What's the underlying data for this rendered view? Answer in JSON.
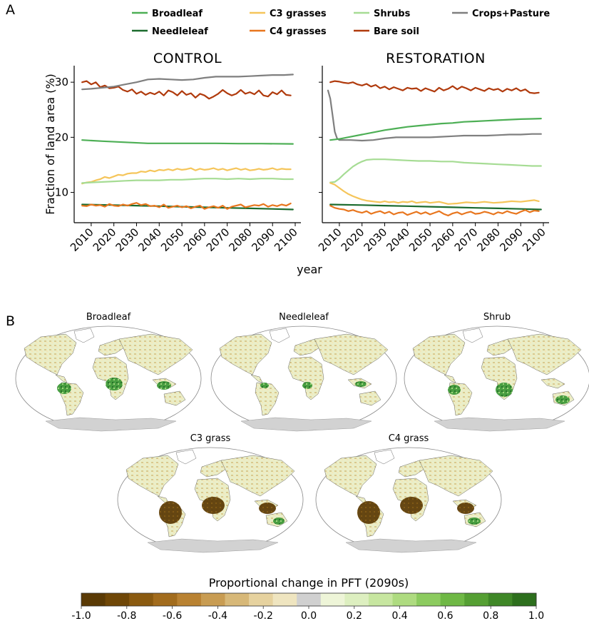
{
  "panel_a_letter": "A",
  "panel_b_letter": "B",
  "colors": {
    "Broadleaf": "#4daf55",
    "Needleleaf": "#1b6b2e",
    "C3 grasses": "#f5c55a",
    "C4 grasses": "#e8761e",
    "Shrubs": "#a6dc94",
    "Bare soil": "#b03a0c",
    "Crops+Pasture": "#7f7f7f"
  },
  "legend": [
    "Broadleaf",
    "Needleleaf",
    "C3 grasses",
    "C4 grasses",
    "Shrubs",
    "Bare soil",
    "Crops+Pasture"
  ],
  "chart_data": [
    {
      "type": "line",
      "title": "CONTROL",
      "xlabel": "year",
      "ylabel": "Fraction of land area (%)",
      "xlim": [
        2005,
        2100
      ],
      "ylim": [
        4.5,
        33
      ],
      "xticks": [
        2010,
        2020,
        2030,
        2040,
        2050,
        2060,
        2070,
        2080,
        2090,
        2100
      ],
      "yticks": [
        10,
        20,
        30
      ],
      "series": [
        {
          "name": "Bare soil",
          "x": [
            2006,
            2008,
            2010,
            2012,
            2014,
            2016,
            2018,
            2020,
            2022,
            2024,
            2026,
            2028,
            2030,
            2032,
            2034,
            2036,
            2038,
            2040,
            2042,
            2044,
            2046,
            2048,
            2050,
            2052,
            2054,
            2056,
            2058,
            2060,
            2062,
            2064,
            2066,
            2068,
            2070,
            2072,
            2074,
            2076,
            2078,
            2080,
            2082,
            2084,
            2086,
            2088,
            2090,
            2092,
            2094,
            2096,
            2098
          ],
          "y": [
            30.0,
            30.2,
            29.6,
            30.0,
            29.1,
            29.4,
            28.9,
            29.0,
            29.2,
            28.6,
            28.3,
            28.7,
            27.9,
            28.3,
            27.7,
            28.1,
            27.8,
            28.3,
            27.6,
            28.5,
            28.2,
            27.6,
            28.4,
            27.7,
            28.0,
            27.2,
            27.9,
            27.6,
            27.0,
            27.4,
            27.9,
            28.6,
            28.0,
            27.6,
            27.9,
            28.6,
            27.9,
            28.2,
            27.8,
            28.5,
            27.6,
            27.4,
            28.2,
            27.8,
            28.5,
            27.7,
            27.6
          ]
        },
        {
          "name": "Crops+Pasture",
          "x": [
            2006,
            2010,
            2015,
            2020,
            2025,
            2030,
            2035,
            2040,
            2045,
            2050,
            2055,
            2060,
            2065,
            2070,
            2075,
            2080,
            2085,
            2090,
            2095,
            2099
          ],
          "y": [
            28.7,
            28.8,
            29.0,
            29.2,
            29.6,
            30.0,
            30.5,
            30.6,
            30.5,
            30.4,
            30.5,
            30.8,
            31.0,
            31.0,
            31.0,
            31.1,
            31.2,
            31.3,
            31.3,
            31.4
          ]
        },
        {
          "name": "Broadleaf",
          "x": [
            2006,
            2015,
            2025,
            2035,
            2045,
            2055,
            2065,
            2075,
            2085,
            2099
          ],
          "y": [
            19.5,
            19.3,
            19.1,
            18.9,
            18.9,
            18.9,
            18.9,
            18.85,
            18.85,
            18.8
          ]
        },
        {
          "name": "C3 grasses",
          "x": [
            2006,
            2008,
            2010,
            2012,
            2014,
            2016,
            2018,
            2020,
            2022,
            2024,
            2026,
            2028,
            2030,
            2032,
            2034,
            2036,
            2038,
            2040,
            2042,
            2044,
            2046,
            2048,
            2050,
            2052,
            2054,
            2056,
            2058,
            2060,
            2062,
            2064,
            2066,
            2068,
            2070,
            2072,
            2074,
            2076,
            2078,
            2080,
            2082,
            2084,
            2086,
            2088,
            2090,
            2092,
            2094,
            2096,
            2098
          ],
          "y": [
            11.6,
            11.8,
            11.9,
            12.2,
            12.4,
            12.8,
            12.6,
            12.9,
            13.2,
            13.1,
            13.4,
            13.5,
            13.5,
            13.8,
            13.7,
            14.0,
            13.8,
            14.1,
            14.0,
            14.2,
            14.0,
            14.3,
            14.1,
            14.2,
            14.4,
            14.0,
            14.3,
            14.1,
            14.2,
            14.4,
            14.1,
            14.3,
            14.0,
            14.2,
            14.4,
            14.1,
            14.3,
            14.0,
            14.1,
            14.3,
            14.1,
            14.2,
            14.4,
            14.1,
            14.3,
            14.2,
            14.2
          ]
        },
        {
          "name": "Shrubs",
          "x": [
            2006,
            2010,
            2015,
            2020,
            2025,
            2030,
            2035,
            2040,
            2045,
            2050,
            2055,
            2060,
            2065,
            2070,
            2075,
            2080,
            2085,
            2090,
            2095,
            2099
          ],
          "y": [
            11.7,
            11.8,
            11.9,
            12.0,
            12.1,
            12.2,
            12.2,
            12.2,
            12.3,
            12.3,
            12.4,
            12.5,
            12.5,
            12.4,
            12.5,
            12.4,
            12.5,
            12.5,
            12.4,
            12.4
          ]
        },
        {
          "name": "Needleleaf",
          "x": [
            2006,
            2020,
            2030,
            2040,
            2050,
            2060,
            2070,
            2080,
            2090,
            2099
          ],
          "y": [
            7.8,
            7.7,
            7.6,
            7.5,
            7.4,
            7.3,
            7.2,
            7.1,
            7.0,
            6.9
          ]
        },
        {
          "name": "C4 grasses",
          "x": [
            2006,
            2008,
            2010,
            2012,
            2014,
            2016,
            2018,
            2020,
            2022,
            2024,
            2026,
            2028,
            2030,
            2032,
            2034,
            2036,
            2038,
            2040,
            2042,
            2044,
            2046,
            2048,
            2050,
            2052,
            2054,
            2056,
            2058,
            2060,
            2062,
            2064,
            2066,
            2068,
            2070,
            2072,
            2074,
            2076,
            2078,
            2080,
            2082,
            2084,
            2086,
            2088,
            2090,
            2092,
            2094,
            2096,
            2098
          ],
          "y": [
            7.6,
            7.5,
            7.8,
            7.6,
            7.7,
            7.4,
            7.9,
            7.6,
            7.5,
            7.8,
            7.6,
            7.9,
            8.1,
            7.7,
            7.9,
            7.5,
            7.6,
            7.3,
            7.8,
            7.2,
            7.4,
            7.6,
            7.3,
            7.5,
            7.1,
            7.4,
            7.6,
            7.0,
            7.3,
            7.5,
            7.2,
            7.6,
            7.0,
            7.4,
            7.6,
            7.8,
            7.3,
            7.5,
            7.7,
            7.6,
            7.9,
            7.4,
            7.7,
            7.5,
            7.8,
            7.6,
            8.0
          ]
        }
      ]
    },
    {
      "type": "line",
      "title": "RESTORATION",
      "xlabel": "year",
      "ylabel": "",
      "xlim": [
        2005,
        2100
      ],
      "ylim": [
        4.5,
        33
      ],
      "xticks": [
        2010,
        2020,
        2030,
        2040,
        2050,
        2060,
        2070,
        2080,
        2090,
        2100
      ],
      "yticks": [
        10,
        20,
        30
      ],
      "series": [
        {
          "name": "Bare soil",
          "x": [
            2006,
            2008,
            2010,
            2012,
            2014,
            2016,
            2018,
            2020,
            2022,
            2024,
            2026,
            2028,
            2030,
            2032,
            2034,
            2036,
            2038,
            2040,
            2042,
            2044,
            2046,
            2048,
            2050,
            2052,
            2054,
            2056,
            2058,
            2060,
            2062,
            2064,
            2066,
            2068,
            2070,
            2072,
            2074,
            2076,
            2078,
            2080,
            2082,
            2084,
            2086,
            2088,
            2090,
            2092,
            2094,
            2096,
            2098
          ],
          "y": [
            30.0,
            30.2,
            30.1,
            29.9,
            29.8,
            30.0,
            29.6,
            29.4,
            29.7,
            29.2,
            29.5,
            28.9,
            29.2,
            28.7,
            29.1,
            28.8,
            28.5,
            29.0,
            28.8,
            28.9,
            28.4,
            28.9,
            28.6,
            28.3,
            29.0,
            28.5,
            28.8,
            29.3,
            28.7,
            29.2,
            28.9,
            28.5,
            29.0,
            28.7,
            28.4,
            28.9,
            28.6,
            28.8,
            28.3,
            28.8,
            28.5,
            28.9,
            28.4,
            28.7,
            28.1,
            28.0,
            28.1
          ]
        },
        {
          "name": "Crops+Pasture",
          "x": [
            2005,
            2006,
            2007,
            2008,
            2009,
            2010,
            2012,
            2015,
            2020,
            2025,
            2030,
            2035,
            2040,
            2045,
            2050,
            2055,
            2060,
            2065,
            2070,
            2075,
            2080,
            2085,
            2090,
            2095,
            2099
          ],
          "y": [
            28.5,
            27.0,
            24.0,
            21.0,
            19.8,
            19.5,
            19.5,
            19.5,
            19.4,
            19.5,
            19.8,
            20.0,
            20.0,
            20.0,
            20.0,
            20.1,
            20.2,
            20.3,
            20.3,
            20.3,
            20.4,
            20.5,
            20.5,
            20.6,
            20.6
          ]
        },
        {
          "name": "Broadleaf",
          "x": [
            2006,
            2010,
            2015,
            2020,
            2025,
            2030,
            2035,
            2040,
            2045,
            2050,
            2055,
            2060,
            2065,
            2070,
            2075,
            2080,
            2085,
            2090,
            2095,
            2099
          ],
          "y": [
            19.5,
            19.7,
            20.1,
            20.5,
            20.9,
            21.3,
            21.6,
            21.9,
            22.1,
            22.3,
            22.5,
            22.6,
            22.8,
            22.9,
            23.0,
            23.1,
            23.2,
            23.3,
            23.35,
            23.4
          ]
        },
        {
          "name": "Shrubs",
          "x": [
            2006,
            2008,
            2010,
            2012,
            2014,
            2016,
            2018,
            2020,
            2022,
            2025,
            2030,
            2035,
            2040,
            2045,
            2050,
            2055,
            2060,
            2065,
            2070,
            2075,
            2080,
            2085,
            2090,
            2095,
            2099
          ],
          "y": [
            11.8,
            11.9,
            12.5,
            13.3,
            14.0,
            14.7,
            15.2,
            15.6,
            15.9,
            16.0,
            16.0,
            15.9,
            15.8,
            15.7,
            15.7,
            15.6,
            15.6,
            15.4,
            15.3,
            15.2,
            15.1,
            15.0,
            14.9,
            14.8,
            14.8
          ]
        },
        {
          "name": "C3 grasses",
          "x": [
            2006,
            2008,
            2010,
            2012,
            2014,
            2016,
            2018,
            2020,
            2022,
            2024,
            2026,
            2028,
            2030,
            2032,
            2034,
            2036,
            2038,
            2040,
            2042,
            2044,
            2046,
            2048,
            2050,
            2054,
            2058,
            2062,
            2066,
            2070,
            2074,
            2078,
            2082,
            2086,
            2090,
            2094,
            2096,
            2098
          ],
          "y": [
            11.7,
            11.4,
            10.8,
            10.2,
            9.7,
            9.3,
            9.0,
            8.7,
            8.5,
            8.4,
            8.3,
            8.2,
            8.4,
            8.2,
            8.3,
            8.1,
            8.3,
            8.2,
            8.4,
            8.1,
            8.2,
            8.3,
            8.1,
            8.3,
            7.9,
            8.0,
            8.2,
            8.1,
            8.3,
            8.1,
            8.2,
            8.4,
            8.3,
            8.5,
            8.6,
            8.4
          ]
        },
        {
          "name": "Needleleaf",
          "x": [
            2006,
            2020,
            2030,
            2040,
            2050,
            2060,
            2070,
            2080,
            2090,
            2099
          ],
          "y": [
            7.8,
            7.7,
            7.6,
            7.5,
            7.4,
            7.3,
            7.2,
            7.1,
            7.0,
            6.9
          ]
        },
        {
          "name": "C4 grasses",
          "x": [
            2006,
            2008,
            2010,
            2012,
            2014,
            2016,
            2018,
            2020,
            2022,
            2024,
            2026,
            2028,
            2030,
            2032,
            2034,
            2036,
            2038,
            2040,
            2042,
            2044,
            2046,
            2048,
            2050,
            2052,
            2054,
            2056,
            2058,
            2060,
            2062,
            2064,
            2066,
            2068,
            2070,
            2072,
            2074,
            2076,
            2078,
            2080,
            2082,
            2084,
            2086,
            2088,
            2090,
            2092,
            2094,
            2096,
            2098
          ],
          "y": [
            7.6,
            7.2,
            7.0,
            6.9,
            6.6,
            6.8,
            6.5,
            6.3,
            6.6,
            6.1,
            6.4,
            6.6,
            6.2,
            6.5,
            6.0,
            6.3,
            6.4,
            5.9,
            6.2,
            6.5,
            6.1,
            6.4,
            6.0,
            6.3,
            6.6,
            6.1,
            5.8,
            6.2,
            6.4,
            6.0,
            6.3,
            6.5,
            6.1,
            6.2,
            6.5,
            6.3,
            6.0,
            6.4,
            6.2,
            6.6,
            6.3,
            6.1,
            6.5,
            6.8,
            6.4,
            6.7,
            6.6
          ]
        }
      ]
    }
  ],
  "maps": [
    {
      "title": "Broadleaf"
    },
    {
      "title": "Needleleaf"
    },
    {
      "title": "Shrub"
    },
    {
      "title": "C3 grass"
    },
    {
      "title": "C4 grass"
    }
  ],
  "colorbar": {
    "title": "Proportional change in PFT (2090s)",
    "ticks": [
      "-1.0",
      "-0.8",
      "-0.6",
      "-0.4",
      "-0.2",
      "0.0",
      "0.2",
      "0.4",
      "0.6",
      "0.8",
      "1.0"
    ],
    "colors": [
      "#5a3a05",
      "#6f4707",
      "#8a5a10",
      "#a26c1d",
      "#b98232",
      "#c89c52",
      "#d7b878",
      "#e6d29f",
      "#efe5c0",
      "#d0d0d0",
      "#eef5d8",
      "#ddefc0",
      "#c7e6a0",
      "#aedb80",
      "#8ccb5f",
      "#6fb845",
      "#559f33",
      "#3f8727",
      "#2d6f1d"
    ]
  }
}
